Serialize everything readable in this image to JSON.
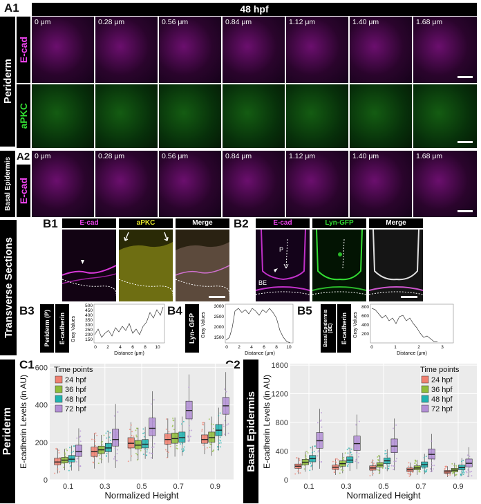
{
  "panels": {
    "a1": "A1",
    "a2": "A2",
    "b1": "B1",
    "b2": "B2",
    "b3": "B3",
    "b4": "B4",
    "b5": "B5",
    "c1": "C1",
    "c2": "C2"
  },
  "header_title": "48 hpf",
  "side_labels": {
    "periderm": "Periderm",
    "basal_epidermis": "Basal Epidermis",
    "transverse_sections": "Transverse Sections",
    "periderm_c": "Periderm",
    "basal_epidermis_c": "Basal Epidermis"
  },
  "channel_labels": {
    "ecad": "E-cad",
    "apkc": "aPKC",
    "merge": "Merge",
    "lyn_gfp": "Lyn-GFP"
  },
  "time_labels": [
    "0 μm",
    "0.28 μm",
    "0.56 μm",
    "0.84 μm",
    "1.12 μm",
    "1.40 μm",
    "1.68 μm"
  ],
  "section_marks": {
    "p": "P",
    "be": "BE"
  },
  "profiles": [
    {
      "id": "b3",
      "row_label_1": "Periderm (P)",
      "row_label_2": "E-cadherin",
      "ylabel": "Gray Values",
      "xlabel": "Distance (μm)",
      "yticks": [
        "500",
        "450",
        "400",
        "350",
        "300",
        "250",
        "200",
        "150"
      ],
      "xticks": [
        "0",
        "2",
        "4",
        "6",
        "8",
        "10"
      ]
    },
    {
      "id": "b4",
      "row_label_1": "Lyn- GFP",
      "ylabel": "Gray Values",
      "xlabel": "Distance (μm)",
      "yticks": [
        "3000",
        "2500",
        "2000",
        "1500"
      ],
      "xticks": [
        "0",
        "2",
        "4",
        "6",
        "8",
        "10"
      ]
    },
    {
      "id": "b5",
      "row_label_1": "Basal Epidermis (BE)",
      "row_label_2": "E-cadherin",
      "ylabel": "Gray Values",
      "xlabel": "Distance (μm)",
      "yticks": [
        "800",
        "600",
        "400",
        "200"
      ],
      "xticks": [
        "0",
        "1",
        "2",
        "3"
      ]
    }
  ],
  "chart_data": [
    {
      "type": "box",
      "ylabel": "E-cadherin Levels (in AU)",
      "xlabel": "Normalized Height",
      "categories": [
        "0.1",
        "0.3",
        "0.5",
        "0.7",
        "0.9"
      ],
      "ylim": [
        0,
        620
      ],
      "yticks": [
        0,
        200,
        400,
        600
      ],
      "legend_title": "Time points",
      "legend_position": "top-left",
      "series": [
        {
          "name": "24 hpf",
          "color": "#f08070",
          "medians": [
            95,
            150,
            195,
            215,
            215
          ],
          "q1": [
            80,
            125,
            170,
            190,
            195
          ],
          "q3": [
            115,
            175,
            225,
            245,
            240
          ]
        },
        {
          "name": "36 hpf",
          "color": "#8fbc3a",
          "medians": [
            105,
            160,
            185,
            220,
            225
          ],
          "q1": [
            90,
            140,
            165,
            195,
            200
          ],
          "q3": [
            120,
            180,
            210,
            250,
            255
          ]
        },
        {
          "name": "48 hpf",
          "color": "#1fb3b0",
          "medians": [
            110,
            170,
            190,
            225,
            265
          ],
          "q1": [
            95,
            150,
            170,
            200,
            235
          ],
          "q3": [
            130,
            195,
            215,
            255,
            295
          ]
        },
        {
          "name": "72 hpf",
          "color": "#b38fd6",
          "medians": [
            150,
            215,
            275,
            370,
            395
          ],
          "q1": [
            125,
            180,
            235,
            325,
            350
          ],
          "q3": [
            185,
            270,
            330,
            420,
            440
          ]
        }
      ]
    },
    {
      "type": "box",
      "ylabel": "E-cadherin Levels (in AU)",
      "xlabel": "Normalized Height",
      "categories": [
        "0.1",
        "0.3",
        "0.5",
        "0.7",
        "0.9"
      ],
      "ylim": [
        0,
        1620
      ],
      "yticks": [
        0,
        400,
        800,
        1200,
        1600
      ],
      "legend_title": "Time points",
      "legend_position": "top-right",
      "series": [
        {
          "name": "24 hpf",
          "color": "#f08070",
          "medians": [
            190,
            175,
            165,
            140,
            110
          ],
          "q1": [
            160,
            145,
            135,
            115,
            90
          ],
          "q3": [
            220,
            205,
            195,
            165,
            130
          ]
        },
        {
          "name": "36 hpf",
          "color": "#8fbc3a",
          "medians": [
            245,
            225,
            205,
            165,
            135
          ],
          "q1": [
            210,
            190,
            175,
            140,
            110
          ],
          "q3": [
            285,
            265,
            240,
            195,
            160
          ]
        },
        {
          "name": "48 hpf",
          "color": "#1fb3b0",
          "medians": [
            295,
            275,
            265,
            210,
            170
          ],
          "q1": [
            250,
            235,
            225,
            175,
            140
          ],
          "q3": [
            340,
            320,
            305,
            250,
            205
          ]
        },
        {
          "name": "72 hpf",
          "color": "#b38fd6",
          "medians": [
            545,
            505,
            470,
            355,
            230
          ],
          "q1": [
            440,
            410,
            380,
            290,
            180
          ],
          "q3": [
            660,
            610,
            570,
            430,
            290
          ]
        }
      ]
    }
  ]
}
